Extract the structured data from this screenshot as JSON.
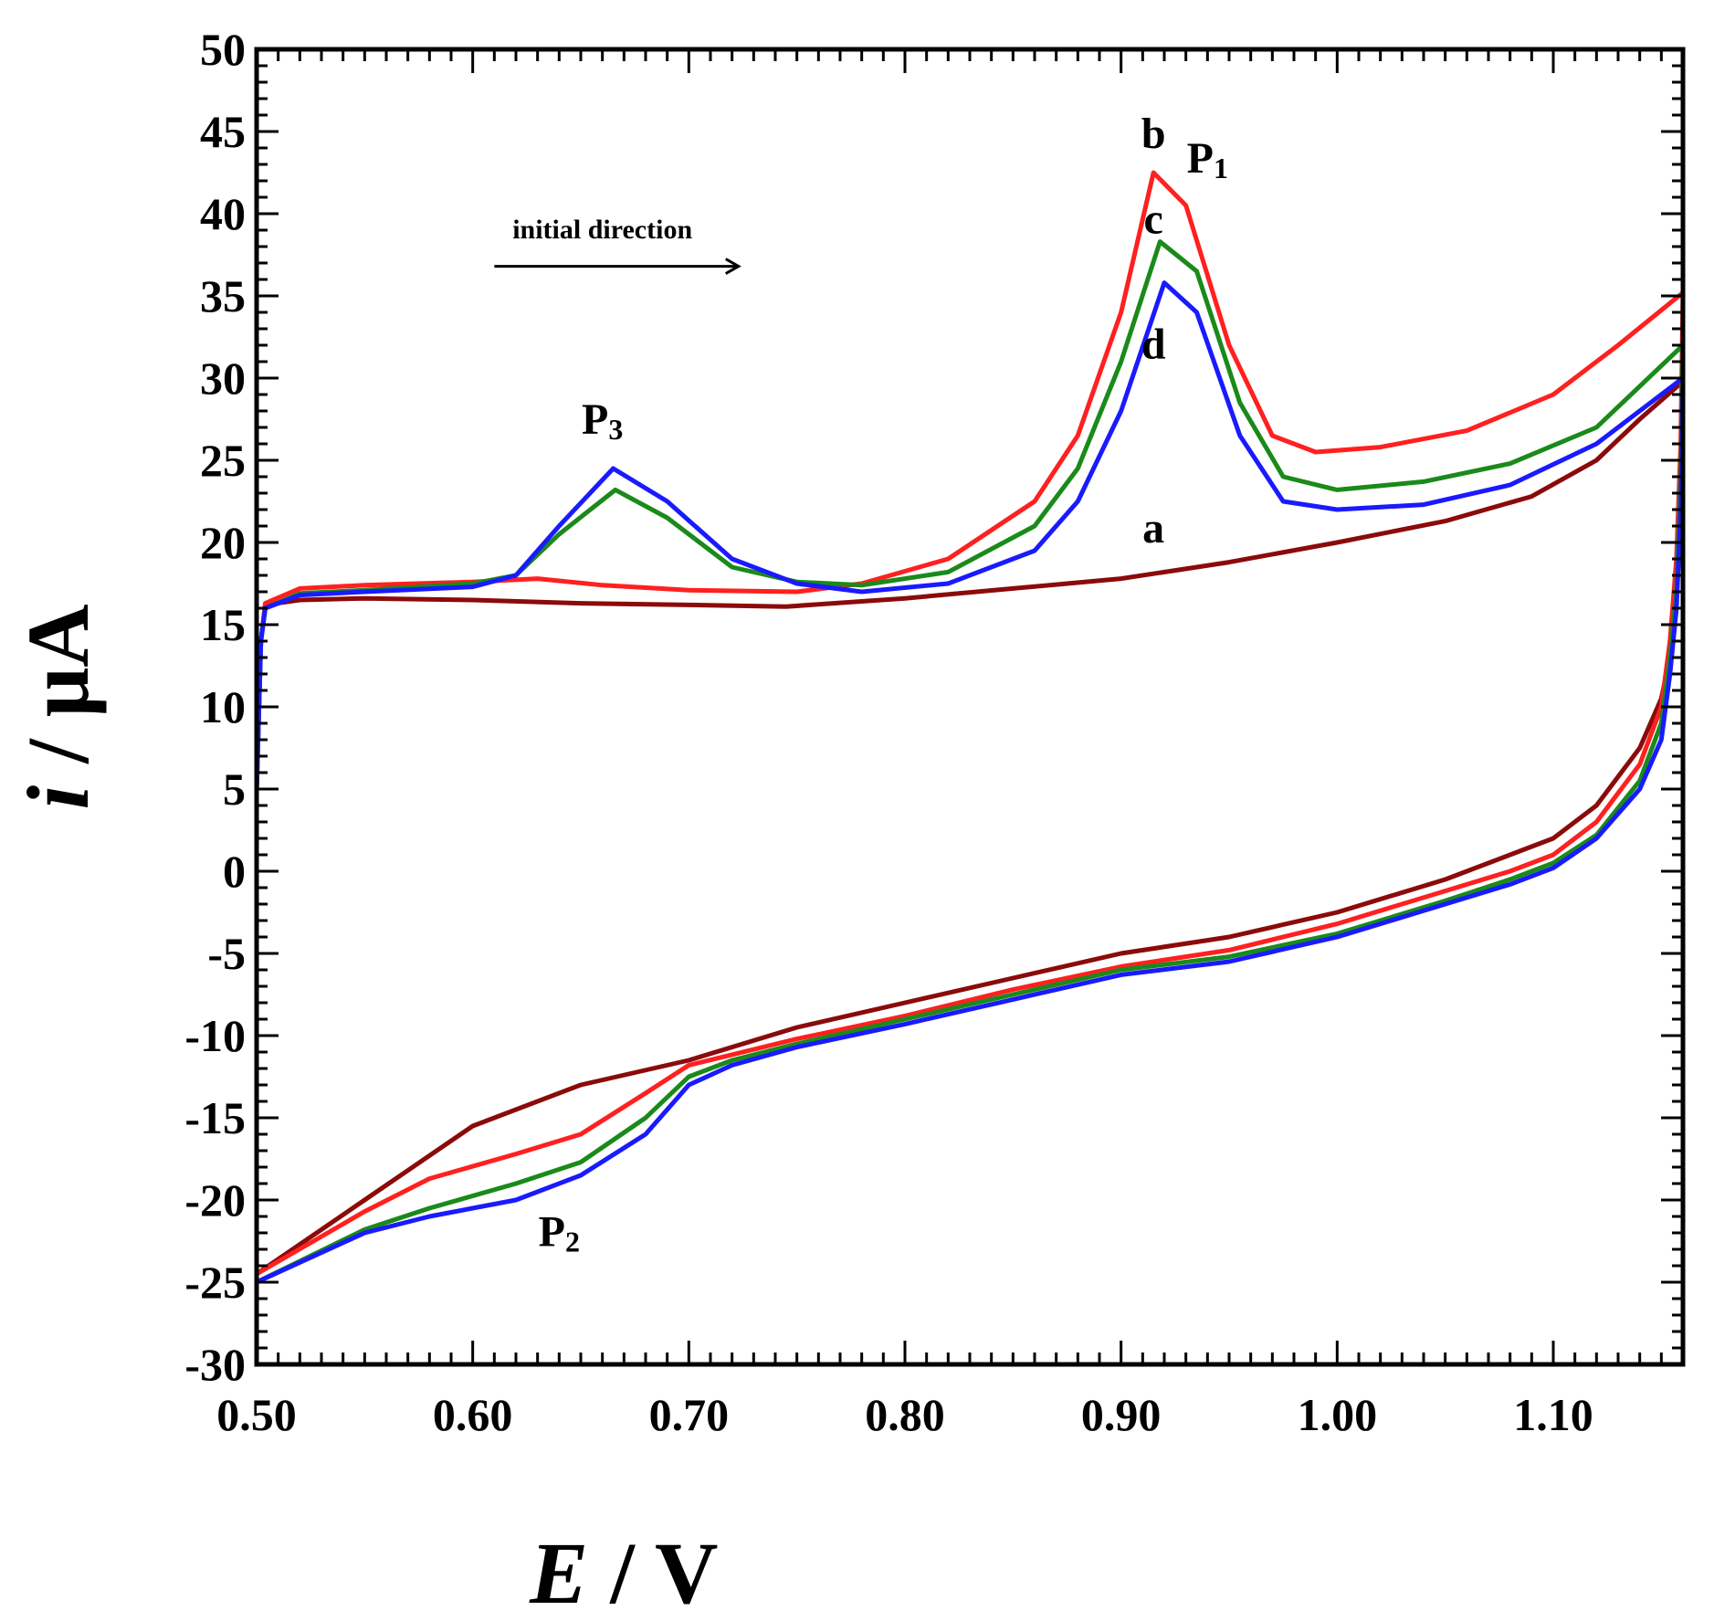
{
  "chart_data": {
    "type": "line",
    "title": "",
    "xlabel_symbol": "E",
    "xlabel_unit": " / V",
    "ylabel_symbol": "i",
    "ylabel_unit": " / μA",
    "xlim": [
      0.5,
      1.16
    ],
    "ylim": [
      -30,
      50
    ],
    "xticks": [
      0.5,
      0.6,
      0.7,
      0.8,
      0.9,
      1.0,
      1.1
    ],
    "xtick_labels": [
      "0.50",
      "0.60",
      "0.70",
      "0.80",
      "0.90",
      "1.00",
      "1.10"
    ],
    "yticks": [
      50,
      45,
      40,
      35,
      30,
      25,
      20,
      15,
      10,
      5,
      0,
      -5,
      -10,
      -15,
      -20,
      -25,
      -30
    ],
    "ytick_labels": [
      "50",
      "45",
      "40",
      "35",
      "30",
      "25",
      "20",
      "15",
      "10",
      "5",
      "0",
      "-5",
      "-10",
      "-15",
      "-20",
      "-25",
      "-30"
    ],
    "grid": false,
    "colors": {
      "a": "#8b0a0a",
      "b": "#ff2020",
      "c": "#1a8a1a",
      "d": "#1a1aff",
      "axis": "#000000"
    },
    "series": [
      {
        "name": "a",
        "forward": [
          [
            0.5,
            5
          ],
          [
            0.502,
            14
          ],
          [
            0.504,
            16.2
          ],
          [
            0.52,
            16.5
          ],
          [
            0.55,
            16.6
          ],
          [
            0.6,
            16.5
          ],
          [
            0.65,
            16.3
          ],
          [
            0.7,
            16.2
          ],
          [
            0.745,
            16.1
          ],
          [
            0.8,
            16.6
          ],
          [
            0.85,
            17.2
          ],
          [
            0.9,
            17.8
          ],
          [
            0.95,
            18.8
          ],
          [
            1.0,
            20.0
          ],
          [
            1.05,
            21.3
          ],
          [
            1.09,
            22.8
          ],
          [
            1.12,
            25.0
          ],
          [
            1.14,
            27.5
          ],
          [
            1.16,
            29.8
          ]
        ],
        "reverse": [
          [
            1.16,
            29.8
          ],
          [
            1.159,
            24
          ],
          [
            1.157,
            18
          ],
          [
            1.154,
            13
          ],
          [
            1.15,
            10.5
          ],
          [
            1.14,
            7.5
          ],
          [
            1.12,
            4.0
          ],
          [
            1.1,
            2.0
          ],
          [
            1.08,
            1.0
          ],
          [
            1.05,
            -0.5
          ],
          [
            1.0,
            -2.5
          ],
          [
            0.95,
            -4.0
          ],
          [
            0.9,
            -5.0
          ],
          [
            0.85,
            -6.5
          ],
          [
            0.8,
            -8.0
          ],
          [
            0.75,
            -9.5
          ],
          [
            0.7,
            -11.5
          ],
          [
            0.65,
            -13.0
          ],
          [
            0.6,
            -15.5
          ],
          [
            0.55,
            -20.0
          ],
          [
            0.5,
            -24.5
          ]
        ]
      },
      {
        "name": "b",
        "forward": [
          [
            0.5,
            5
          ],
          [
            0.502,
            14
          ],
          [
            0.504,
            16.3
          ],
          [
            0.52,
            17.2
          ],
          [
            0.55,
            17.4
          ],
          [
            0.6,
            17.6
          ],
          [
            0.63,
            17.8
          ],
          [
            0.66,
            17.4
          ],
          [
            0.7,
            17.1
          ],
          [
            0.75,
            17.0
          ],
          [
            0.78,
            17.5
          ],
          [
            0.82,
            19.0
          ],
          [
            0.86,
            22.5
          ],
          [
            0.88,
            26.5
          ],
          [
            0.9,
            34.0
          ],
          [
            0.915,
            42.5
          ],
          [
            0.93,
            40.5
          ],
          [
            0.95,
            32.0
          ],
          [
            0.97,
            26.5
          ],
          [
            0.99,
            25.5
          ],
          [
            1.02,
            25.8
          ],
          [
            1.06,
            26.8
          ],
          [
            1.1,
            29.0
          ],
          [
            1.13,
            32.0
          ],
          [
            1.16,
            35.2
          ]
        ],
        "reverse": [
          [
            1.16,
            35.2
          ],
          [
            1.159,
            26
          ],
          [
            1.157,
            19
          ],
          [
            1.154,
            14
          ],
          [
            1.15,
            10
          ],
          [
            1.14,
            6.5
          ],
          [
            1.12,
            3.0
          ],
          [
            1.1,
            1.0
          ],
          [
            1.08,
            0.0
          ],
          [
            1.05,
            -1.2
          ],
          [
            1.0,
            -3.2
          ],
          [
            0.95,
            -4.8
          ],
          [
            0.9,
            -5.8
          ],
          [
            0.85,
            -7.2
          ],
          [
            0.8,
            -8.8
          ],
          [
            0.75,
            -10.2
          ],
          [
            0.7,
            -11.8
          ],
          [
            0.68,
            -13.5
          ],
          [
            0.65,
            -16.0
          ],
          [
            0.62,
            -17.2
          ],
          [
            0.58,
            -18.7
          ],
          [
            0.55,
            -20.7
          ],
          [
            0.5,
            -24.5
          ]
        ]
      },
      {
        "name": "c",
        "forward": [
          [
            0.5,
            5
          ],
          [
            0.502,
            14
          ],
          [
            0.504,
            16.0
          ],
          [
            0.52,
            16.9
          ],
          [
            0.55,
            17.1
          ],
          [
            0.6,
            17.5
          ],
          [
            0.62,
            18.0
          ],
          [
            0.64,
            20.5
          ],
          [
            0.666,
            23.2
          ],
          [
            0.69,
            21.5
          ],
          [
            0.72,
            18.5
          ],
          [
            0.75,
            17.6
          ],
          [
            0.78,
            17.4
          ],
          [
            0.82,
            18.2
          ],
          [
            0.86,
            21.0
          ],
          [
            0.88,
            24.5
          ],
          [
            0.9,
            31.0
          ],
          [
            0.918,
            38.3
          ],
          [
            0.935,
            36.5
          ],
          [
            0.955,
            28.5
          ],
          [
            0.975,
            24.0
          ],
          [
            1.0,
            23.2
          ],
          [
            1.04,
            23.7
          ],
          [
            1.08,
            24.8
          ],
          [
            1.12,
            27.0
          ],
          [
            1.16,
            32.0
          ]
        ],
        "reverse": [
          [
            1.16,
            32.0
          ],
          [
            1.159,
            24
          ],
          [
            1.157,
            17
          ],
          [
            1.154,
            13
          ],
          [
            1.15,
            9
          ],
          [
            1.14,
            5.5
          ],
          [
            1.12,
            2.2
          ],
          [
            1.1,
            0.5
          ],
          [
            1.08,
            -0.5
          ],
          [
            1.05,
            -1.8
          ],
          [
            1.0,
            -3.8
          ],
          [
            0.95,
            -5.2
          ],
          [
            0.9,
            -6.0
          ],
          [
            0.85,
            -7.5
          ],
          [
            0.8,
            -9.0
          ],
          [
            0.75,
            -10.5
          ],
          [
            0.72,
            -11.5
          ],
          [
            0.7,
            -12.5
          ],
          [
            0.68,
            -15.0
          ],
          [
            0.65,
            -17.7
          ],
          [
            0.62,
            -19.0
          ],
          [
            0.58,
            -20.5
          ],
          [
            0.55,
            -21.8
          ],
          [
            0.5,
            -25.0
          ]
        ]
      },
      {
        "name": "d",
        "forward": [
          [
            0.5,
            5
          ],
          [
            0.502,
            14
          ],
          [
            0.504,
            16.0
          ],
          [
            0.52,
            16.8
          ],
          [
            0.55,
            17.0
          ],
          [
            0.6,
            17.3
          ],
          [
            0.62,
            18.0
          ],
          [
            0.64,
            21.0
          ],
          [
            0.665,
            24.5
          ],
          [
            0.69,
            22.5
          ],
          [
            0.72,
            19.0
          ],
          [
            0.75,
            17.5
          ],
          [
            0.78,
            17.0
          ],
          [
            0.82,
            17.5
          ],
          [
            0.86,
            19.5
          ],
          [
            0.88,
            22.5
          ],
          [
            0.9,
            28.0
          ],
          [
            0.92,
            35.8
          ],
          [
            0.935,
            34.0
          ],
          [
            0.955,
            26.5
          ],
          [
            0.975,
            22.5
          ],
          [
            1.0,
            22.0
          ],
          [
            1.04,
            22.3
          ],
          [
            1.08,
            23.5
          ],
          [
            1.12,
            26.0
          ],
          [
            1.16,
            30.0
          ]
        ],
        "reverse": [
          [
            1.16,
            30.0
          ],
          [
            1.159,
            22
          ],
          [
            1.157,
            16
          ],
          [
            1.154,
            12
          ],
          [
            1.15,
            8
          ],
          [
            1.14,
            5.0
          ],
          [
            1.12,
            2.0
          ],
          [
            1.1,
            0.2
          ],
          [
            1.08,
            -0.8
          ],
          [
            1.05,
            -2.0
          ],
          [
            1.0,
            -4.0
          ],
          [
            0.95,
            -5.5
          ],
          [
            0.9,
            -6.3
          ],
          [
            0.85,
            -7.8
          ],
          [
            0.8,
            -9.3
          ],
          [
            0.75,
            -10.7
          ],
          [
            0.72,
            -11.8
          ],
          [
            0.7,
            -13.0
          ],
          [
            0.68,
            -16.0
          ],
          [
            0.65,
            -18.5
          ],
          [
            0.62,
            -20.0
          ],
          [
            0.58,
            -21.0
          ],
          [
            0.55,
            -22.0
          ],
          [
            0.5,
            -25.0
          ]
        ]
      }
    ],
    "annotations": {
      "label_a": {
        "text": "a",
        "x": 0.915,
        "y": 20.0
      },
      "label_b": {
        "text": "b",
        "x": 0.915,
        "y": 44.0
      },
      "label_c": {
        "text": "c",
        "x": 0.915,
        "y": 38.8
      },
      "label_d": {
        "text": "d",
        "x": 0.915,
        "y": 31.2
      },
      "label_p1": {
        "base": "P",
        "sub": "1",
        "x": 0.94,
        "y": 42.5
      },
      "label_p2": {
        "base": "P",
        "sub": "2",
        "x": 0.64,
        "y": -22.8
      },
      "label_p3": {
        "base": "P",
        "sub": "3",
        "x": 0.66,
        "y": 26.6
      },
      "direction": {
        "text": "initial direction",
        "x": 0.66,
        "y": 38.5,
        "arrow_from_x": 0.61,
        "arrow_to_x": 0.723,
        "arrow_y": 36.8
      }
    }
  }
}
